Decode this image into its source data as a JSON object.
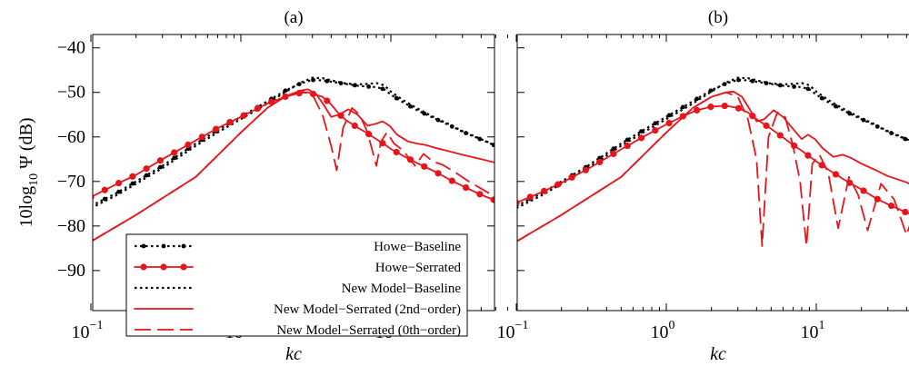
{
  "figure": {
    "ylabel_main": "10log",
    "ylabel_sub": "10",
    "ylabel_rest": " Ψ (dB)"
  },
  "legend": {
    "entries": [
      {
        "label": "Howe−Baseline",
        "style": "howe-baseline"
      },
      {
        "label": "Howe−Serrated",
        "style": "howe-serrated"
      },
      {
        "label": "New Model−Baseline",
        "style": "new-baseline"
      },
      {
        "label": "New Model−Serrated (2nd−order)",
        "style": "new-serrated-2"
      },
      {
        "label": "New Model−Serrated (0th−order)",
        "style": "new-serrated-0"
      }
    ]
  },
  "colors": {
    "black": "#000000",
    "red": "#e8141c"
  },
  "chart_data": [
    {
      "type": "line",
      "title": "(a)",
      "xlabel": "kc",
      "xscale": "log",
      "xlim": [
        0.1,
        60
      ],
      "ylim": [
        -99,
        -37
      ],
      "xticks": [
        0.1,
        1,
        10
      ],
      "xtick_labels": [
        [
          "10",
          "−1"
        ],
        [
          "10",
          "0"
        ],
        [
          "10",
          "1"
        ]
      ],
      "yticks": [
        -90,
        -80,
        -70,
        -60,
        -50,
        -40
      ],
      "ytick_labels": [
        "−90",
        "−80",
        "−70",
        "−60",
        "−50",
        "−40"
      ],
      "legend_position": "bottom-left",
      "series": [
        {
          "name": "Howe−Baseline",
          "color": "#000000",
          "dash": "dotted-marker",
          "x": [
            0.1,
            0.15,
            0.2,
            0.3,
            0.5,
            0.7,
            1,
            1.5,
            2,
            2.5,
            3,
            3.5,
            4,
            5,
            6,
            7,
            8,
            9,
            10,
            12,
            15,
            20,
            25,
            30,
            40,
            50,
            60
          ],
          "y": [
            -75.5,
            -72.5,
            -70,
            -66.5,
            -61.5,
            -58.5,
            -55.5,
            -52,
            -49.5,
            -48,
            -47.2,
            -47.3,
            -47.6,
            -48.1,
            -48.5,
            -48.7,
            -48.8,
            -49.3,
            -50.5,
            -52.2,
            -54,
            -56,
            -57.5,
            -58.8,
            -60.6,
            -62,
            -63
          ]
        },
        {
          "name": "Howe−Serrated",
          "color": "#e8141c",
          "dash": "solid-marker",
          "x": [
            0.1,
            0.15,
            0.2,
            0.3,
            0.5,
            0.7,
            1,
            1.5,
            2,
            2.5,
            2.8,
            3.5,
            4,
            4.5,
            5,
            6,
            7,
            8,
            9,
            10,
            12,
            15,
            20,
            25,
            30,
            40,
            50,
            60
          ],
          "y": [
            -73.5,
            -70.5,
            -68.5,
            -65,
            -60.8,
            -58,
            -55.5,
            -52.5,
            -50.9,
            -50.1,
            -50,
            -51,
            -52.7,
            -54.8,
            -56.2,
            -57.9,
            -59.2,
            -60.5,
            -61.6,
            -62.7,
            -64.2,
            -65.9,
            -67.9,
            -69.7,
            -71,
            -73,
            -74.3,
            -75.5
          ]
        },
        {
          "name": "New Model−Baseline",
          "color": "#000000",
          "dash": "dotted",
          "x": [
            0.1,
            0.15,
            0.2,
            0.3,
            0.5,
            0.7,
            1,
            1.5,
            2,
            2.5,
            3,
            3.5,
            4,
            5,
            6,
            7,
            8,
            9,
            10,
            12,
            15,
            20,
            25,
            30,
            40,
            50,
            60
          ],
          "y": [
            -76,
            -73,
            -70.5,
            -67,
            -62,
            -59,
            -56,
            -52.5,
            -49.8,
            -47.8,
            -46.7,
            -46.8,
            -47.3,
            -48,
            -48.2,
            -48.1,
            -47.9,
            -48.4,
            -49.8,
            -51.7,
            -53.6,
            -55.8,
            -57.3,
            -58.7,
            -60.5,
            -61.9,
            -63
          ]
        },
        {
          "name": "New Model−Serrated (2nd−order)",
          "color": "#e8141c",
          "dash": "solid",
          "x": [
            0.1,
            0.2,
            0.5,
            1,
            1.5,
            2,
            2.5,
            2.8,
            3.2,
            3.6,
            4,
            4.5,
            5.2,
            6,
            7,
            8,
            8.8,
            9.8,
            11,
            13,
            15,
            17,
            20,
            25,
            30,
            40,
            50,
            60
          ],
          "y": [
            -83.5,
            -77.5,
            -69,
            -59,
            -53.5,
            -50.8,
            -49.6,
            -49.3,
            -50.5,
            -53,
            -55.5,
            -55,
            -53.8,
            -55,
            -57.5,
            -57,
            -56.5,
            -57.5,
            -59.5,
            -61,
            -61.5,
            -61.8,
            -62.5,
            -63.3,
            -64,
            -65,
            -65.8,
            -66.5
          ]
        },
        {
          "name": "New Model−Serrated (0th−order)",
          "color": "#e8141c",
          "dash": "dashed",
          "x": [
            0.1,
            0.2,
            0.5,
            1,
            1.5,
            2,
            2.5,
            3,
            3.5,
            4,
            4.35,
            4.8,
            5.5,
            6.2,
            7,
            8,
            8.6,
            9.4,
            10.5,
            12,
            14.5,
            16.5,
            19,
            22,
            27,
            33,
            40,
            50,
            60
          ],
          "y": [
            -83.5,
            -77.5,
            -69,
            -59,
            -53.5,
            -50.8,
            -49.7,
            -50.5,
            -55,
            -62,
            -67.5,
            -58,
            -53.5,
            -55,
            -59,
            -66.5,
            -61,
            -59,
            -61.5,
            -63,
            -66.5,
            -63.8,
            -65.5,
            -66.2,
            -68,
            -70,
            -71.6,
            -73.5,
            -75
          ]
        }
      ]
    },
    {
      "type": "line",
      "title": "(b)",
      "xlabel": "kc",
      "xscale": "log",
      "xlim": [
        0.1,
        60
      ],
      "ylim": [
        -99,
        -37
      ],
      "xticks": [
        0.1,
        1,
        10
      ],
      "xtick_labels": [
        [
          "10",
          "−1"
        ],
        [
          "10",
          "0"
        ],
        [
          "10",
          "1"
        ]
      ],
      "yticks": [
        -90,
        -80,
        -70,
        -60,
        -50,
        -40
      ],
      "ytick_labels": [],
      "series": [
        {
          "name": "Howe−Baseline",
          "color": "#000000",
          "dash": "dotted-marker",
          "x": [
            0.1,
            0.15,
            0.2,
            0.3,
            0.5,
            0.7,
            1,
            1.5,
            2,
            2.5,
            3,
            3.5,
            4,
            5,
            6,
            7,
            8,
            9,
            10,
            12,
            15,
            20,
            25,
            30,
            40,
            50,
            60
          ],
          "y": [
            -75.5,
            -72.5,
            -70,
            -66.5,
            -61.5,
            -58.5,
            -55.5,
            -52,
            -49.5,
            -48,
            -47.2,
            -47.3,
            -47.6,
            -48.1,
            -48.5,
            -48.7,
            -48.8,
            -49.3,
            -50.5,
            -52.2,
            -54,
            -56,
            -57.5,
            -58.8,
            -60.6,
            -62,
            -63
          ]
        },
        {
          "name": "Howe−Serrated",
          "color": "#e8141c",
          "dash": "solid-marker",
          "x": [
            0.1,
            0.15,
            0.2,
            0.3,
            0.5,
            0.7,
            1,
            1.3,
            1.6,
            2,
            2.5,
            3,
            3.5,
            4,
            5,
            6,
            7,
            8,
            9,
            10,
            12,
            15,
            20,
            25,
            30,
            40,
            50,
            60
          ],
          "y": [
            -74.8,
            -72.3,
            -70.3,
            -67.2,
            -62.8,
            -60,
            -57.2,
            -55.3,
            -54,
            -53.2,
            -53,
            -53.5,
            -54.5,
            -56,
            -58.2,
            -60.1,
            -61.8,
            -63.1,
            -64.4,
            -65.5,
            -67.3,
            -69.4,
            -71.8,
            -73.8,
            -75.1,
            -77,
            -78.1,
            -79
          ]
        },
        {
          "name": "New Model−Baseline",
          "color": "#000000",
          "dash": "dotted",
          "x": [
            0.1,
            0.15,
            0.2,
            0.3,
            0.5,
            0.7,
            1,
            1.5,
            2,
            2.5,
            3,
            3.5,
            4,
            5,
            6,
            7,
            8,
            9,
            10,
            12,
            15,
            20,
            25,
            30,
            40,
            50,
            60
          ],
          "y": [
            -76,
            -73,
            -70.5,
            -67,
            -62,
            -59,
            -56,
            -52.5,
            -49.8,
            -47.8,
            -46.7,
            -46.8,
            -47.3,
            -48,
            -48.2,
            -48.1,
            -47.9,
            -48.4,
            -49.8,
            -51.7,
            -53.6,
            -55.8,
            -57.3,
            -58.7,
            -60.5,
            -61.9,
            -63
          ]
        },
        {
          "name": "New Model−Serrated (2nd−order)",
          "color": "#e8141c",
          "dash": "solid",
          "x": [
            0.1,
            0.2,
            0.5,
            1,
            1.5,
            2,
            2.5,
            2.8,
            3.2,
            3.6,
            4,
            4.5,
            5.2,
            6,
            7,
            8,
            8.8,
            9.8,
            11,
            13,
            15,
            17,
            20,
            25,
            30,
            40,
            50,
            60
          ],
          "y": [
            -83.5,
            -77.5,
            -69,
            -59,
            -53.5,
            -51,
            -50,
            -49.8,
            -51,
            -53.8,
            -56.5,
            -56,
            -54,
            -55.5,
            -58.2,
            -60.5,
            -59.5,
            -60.5,
            -62.5,
            -64.5,
            -64,
            -64.7,
            -66,
            -67.5,
            -68.8,
            -70.2,
            -72,
            -73
          ]
        },
        {
          "name": "New Model−Serrated (0th−order)",
          "color": "#e8141c",
          "dash": "dashed",
          "x": [
            0.1,
            0.2,
            0.5,
            1,
            1.5,
            2,
            2.5,
            3,
            3.5,
            4,
            4.35,
            4.8,
            5.5,
            6.2,
            7,
            7.8,
            8.6,
            9.4,
            10.5,
            12,
            14,
            16.5,
            19,
            22,
            27,
            33,
            40,
            50,
            60
          ],
          "y": [
            -83.5,
            -77.5,
            -69,
            -59,
            -53.5,
            -51,
            -50,
            -51,
            -56,
            -65,
            -84.5,
            -60,
            -54.5,
            -55.5,
            -62,
            -70,
            -84.5,
            -66,
            -64,
            -68,
            -80.5,
            -69,
            -73,
            -81,
            -70.5,
            -74,
            -82,
            -72.5,
            -77
          ]
        }
      ]
    }
  ]
}
